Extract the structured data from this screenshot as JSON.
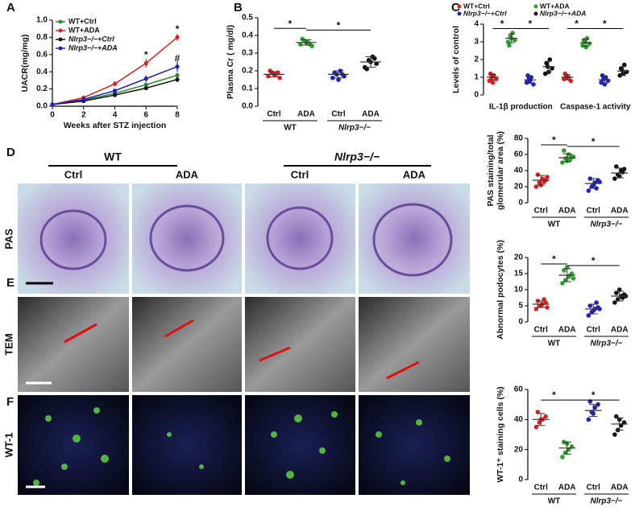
{
  "chart_data": [
    {
      "type": "line",
      "panel": "A",
      "xlabel": "Weeks after STZ injection",
      "ylabel": "UACR(mg/mg)",
      "x": [
        0,
        2,
        4,
        6,
        8
      ],
      "xlim": [
        0,
        8
      ],
      "xticks": [
        0,
        2,
        4,
        6,
        8
      ],
      "ylim": [
        0,
        1
      ],
      "yticks": [
        {
          "value": 0,
          "label": "0.0"
        },
        0.2,
        0.4,
        0.6,
        0.8,
        {
          "value": 1,
          "label": "1.0"
        }
      ],
      "series": [
        {
          "name": "WT+Ctrl",
          "color": "#2e8b2e",
          "values": [
            0.02,
            0.07,
            0.15,
            0.25,
            0.36
          ],
          "errors": [
            0.005,
            0.01,
            0.015,
            0.02,
            0.03
          ]
        },
        {
          "name": "WT+ADA",
          "color": "#e02020",
          "values": [
            0.02,
            0.1,
            0.26,
            0.5,
            0.8
          ],
          "errors": [
            0.005,
            0.015,
            0.03,
            0.05,
            0.04
          ]
        },
        {
          "name": "Nlrp3−/−+Ctrl",
          "color": "#111111",
          "values": [
            0.02,
            0.06,
            0.13,
            0.21,
            0.31
          ],
          "errors": [
            0.005,
            0.01,
            0.015,
            0.02,
            0.03
          ]
        },
        {
          "name": "Nlrp3−/−+ADA",
          "color": "#2020c0",
          "values": [
            0.02,
            0.08,
            0.18,
            0.32,
            0.46
          ],
          "errors": [
            0.005,
            0.01,
            0.02,
            0.04,
            0.06
          ]
        }
      ],
      "annotations": [
        {
          "text": "*",
          "x": 6,
          "y": 0.59
        },
        {
          "text": "*",
          "x": 8,
          "y": 0.89
        },
        {
          "text": "#",
          "x": 8,
          "y": 0.55
        }
      ]
    },
    {
      "type": "dot",
      "panel": "B",
      "ylabel": "Plasma Cr ( mg/dl)",
      "categories": [
        "Ctrl",
        "ADA",
        "Ctrl",
        "ADA"
      ],
      "groups": [
        "WT",
        "Nlrp3−/−"
      ],
      "colors": [
        "#e02020",
        "#2e9e2e",
        "#2020c0",
        "#111111"
      ],
      "points": [
        [
          0.17,
          0.19,
          0.18,
          0.16,
          0.2,
          0.18,
          0.19
        ],
        [
          0.35,
          0.37,
          0.36,
          0.34,
          0.38,
          0.36,
          0.35
        ],
        [
          0.16,
          0.18,
          0.2,
          0.17,
          0.19,
          0.15,
          0.18
        ],
        [
          0.22,
          0.26,
          0.28,
          0.24,
          0.21,
          0.25,
          0.27
        ]
      ],
      "means": [
        0.18,
        0.36,
        0.18,
        0.25
      ],
      "sds": [
        0.015,
        0.015,
        0.02,
        0.03
      ],
      "ylim": [
        0,
        0.5
      ],
      "yticks": [
        {
          "value": 0,
          "label": "0.0"
        },
        0.1,
        0.2,
        0.3,
        0.4,
        0.5
      ],
      "brackets": [
        {
          "from": 0,
          "to": 1,
          "y": 0.44,
          "label": "*"
        },
        {
          "from": 1,
          "to": 3,
          "y": 0.43,
          "label": "*"
        }
      ]
    },
    {
      "type": "dot",
      "panel": "C",
      "ylabel": "Levels of control",
      "groups": [
        "IL-1β production",
        "Caspase-1 activity"
      ],
      "colors": [
        "#e02020",
        "#2e9e2e",
        "#2020c0",
        "#111111",
        "#e02020",
        "#2e9e2e",
        "#2020c0",
        "#111111"
      ],
      "legend": [
        {
          "name": "WT+Ctrl",
          "color": "#e02020"
        },
        {
          "name": "Nlrp3−/−+Ctrl",
          "color": "#2020c0"
        },
        {
          "name": "WT+ADA",
          "color": "#2e9e2e"
        },
        {
          "name": "Nlrp3−/−+ADA",
          "color": "#111111"
        }
      ],
      "points": [
        [
          0.8,
          1.0,
          1.1,
          0.9,
          1.2,
          0.7
        ],
        [
          3.0,
          3.3,
          3.5,
          3.1,
          2.8,
          3.2
        ],
        [
          0.7,
          0.9,
          1.0,
          0.6,
          1.1,
          0.8
        ],
        [
          1.2,
          1.6,
          2.0,
          1.5,
          1.8,
          1.3
        ],
        [
          0.9,
          1.1,
          1.0,
          0.8,
          1.2,
          1.0
        ],
        [
          2.8,
          3.0,
          3.2,
          2.9,
          3.1,
          2.7
        ],
        [
          0.7,
          0.9,
          1.0,
          0.8,
          1.1,
          0.6
        ],
        [
          1.1,
          1.4,
          1.7,
          1.3,
          1.5,
          1.2
        ]
      ],
      "means": [
        1.0,
        3.2,
        0.85,
        1.6,
        1.0,
        2.95,
        0.85,
        1.35
      ],
      "sds": [
        0.15,
        0.25,
        0.2,
        0.3,
        0.15,
        0.2,
        0.2,
        0.25
      ],
      "ylim": [
        0,
        4
      ],
      "yticks": [
        0,
        1,
        2,
        3,
        4
      ],
      "brackets": [
        {
          "from": 0,
          "to": 1,
          "y": 3.75,
          "label": "*"
        },
        {
          "from": 1,
          "to": 3,
          "y": 3.75,
          "label": "*"
        },
        {
          "from": 4,
          "to": 5,
          "y": 3.75,
          "label": "*"
        },
        {
          "from": 5,
          "to": 7,
          "y": 3.75,
          "label": "*"
        }
      ]
    },
    {
      "type": "dot",
      "panel": "D",
      "ylabel": [
        "PAS staining/total",
        "glomerular area (%)"
      ],
      "categories": [
        "Ctrl",
        "ADA",
        "Ctrl",
        "ADA"
      ],
      "groups": [
        "WT",
        "Nlrp3−/−"
      ],
      "colors": [
        "#e02020",
        "#2e9e2e",
        "#2020c0",
        "#111111"
      ],
      "points": [
        [
          20,
          25,
          30,
          28,
          35,
          22,
          26,
          32
        ],
        [
          50,
          55,
          60,
          58,
          65,
          52,
          54,
          57
        ],
        [
          15,
          20,
          25,
          28,
          30,
          22,
          18,
          26
        ],
        [
          30,
          35,
          40,
          42,
          45,
          33,
          38
        ]
      ],
      "means": [
        28,
        56,
        24,
        37
      ],
      "sds": [
        6,
        5,
        6,
        6
      ],
      "ylim": [
        0,
        80
      ],
      "yticks": [
        0,
        20,
        40,
        60,
        80
      ],
      "brackets": [
        {
          "from": 0,
          "to": 1,
          "y": 72,
          "label": "*"
        },
        {
          "from": 1,
          "to": 3,
          "y": 70,
          "label": "*"
        }
      ]
    },
    {
      "type": "dot",
      "panel": "E",
      "ylabel": "Abnormal podocytes (%)",
      "categories": [
        "Ctrl",
        "ADA",
        "Ctrl",
        "ADA"
      ],
      "groups": [
        "WT",
        "Nlrp3−/−"
      ],
      "colors": [
        "#e02020",
        "#2e9e2e",
        "#2020c0",
        "#111111"
      ],
      "points": [
        [
          4,
          5,
          5.5,
          6,
          6.5,
          5,
          7,
          4.5
        ],
        [
          12,
          13,
          14,
          15,
          16,
          17,
          14.5,
          13.5
        ],
        [
          2,
          3,
          4,
          4.5,
          5,
          3.5,
          6,
          4
        ],
        [
          6,
          7,
          8,
          8.5,
          9,
          10,
          7.5,
          8
        ]
      ],
      "means": [
        5.5,
        14.5,
        4,
        8
      ],
      "sds": [
        1,
        2,
        1.5,
        1.5
      ],
      "ylim": [
        0,
        20
      ],
      "yticks": [
        0,
        5,
        10,
        15,
        20
      ],
      "brackets": [
        {
          "from": 0,
          "to": 1,
          "y": 18,
          "label": "*"
        },
        {
          "from": 1,
          "to": 3,
          "y": 17.5,
          "label": "*"
        }
      ]
    },
    {
      "type": "dot",
      "panel": "F",
      "ylabel": "WT-1⁺ staining cells (%)",
      "categories": [
        "Ctrl",
        "ADA",
        "Ctrl",
        "ADA"
      ],
      "groups": [
        "WT",
        "Nlrp3−/−"
      ],
      "colors": [
        "#e02020",
        "#2e9e2e",
        "#2020c0",
        "#111111"
      ],
      "points": [
        [
          35,
          38,
          40,
          42,
          45,
          40
        ],
        [
          15,
          18,
          20,
          22,
          25,
          24
        ],
        [
          40,
          45,
          48,
          50,
          52,
          44
        ],
        [
          30,
          33,
          36,
          38,
          42,
          40
        ]
      ],
      "means": [
        40,
        21,
        46,
        37
      ],
      "sds": [
        4,
        4,
        4,
        4
      ],
      "ylim": [
        0,
        60
      ],
      "yticks": [
        0,
        20,
        40,
        60
      ],
      "brackets": [
        {
          "from": 0,
          "to": 1,
          "y": 53,
          "label": "*"
        },
        {
          "from": 1,
          "to": 3,
          "y": 53,
          "label": "*"
        }
      ]
    }
  ],
  "images": {
    "groups": [
      "WT",
      "Nlrp3−/−"
    ],
    "columns": [
      "Ctrl",
      "ADA",
      "Ctrl",
      "ADA"
    ],
    "rows": [
      "PAS",
      "TEM",
      "WT-1"
    ]
  }
}
